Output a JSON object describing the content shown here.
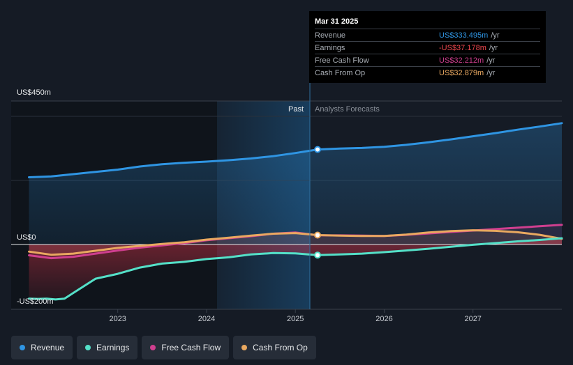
{
  "chart_data": {
    "type": "line",
    "y_axis": {
      "top_label": "US$450m",
      "zero_label": "US$0",
      "bottom_label": "-US$200m",
      "ylim": [
        -200,
        450
      ]
    },
    "x_axis": {
      "tick_labels": [
        "2023",
        "2024",
        "2025",
        "2026",
        "2027"
      ],
      "tick_values": [
        2023,
        2024,
        2025,
        2026,
        2027
      ],
      "xlim": [
        2021.8,
        2028.0
      ]
    },
    "divider_x": 2025.25,
    "period_labels": {
      "past": "Past",
      "forecast": "Analysts Forecasts"
    },
    "series": [
      {
        "name": "Revenue",
        "key": "revenue",
        "color": "#2f95e3",
        "x": [
          2022.0,
          2022.25,
          2022.5,
          2022.75,
          2023.0,
          2023.25,
          2023.5,
          2023.75,
          2024.0,
          2024.25,
          2024.5,
          2024.75,
          2025.0,
          2025.25,
          2025.5,
          2025.75,
          2026.0,
          2026.25,
          2026.5,
          2026.75,
          2027.0,
          2027.25,
          2027.5,
          2027.75,
          2028.0
        ],
        "y": [
          236,
          239,
          247,
          255,
          263,
          274,
          282,
          287,
          291,
          296,
          302,
          310,
          321,
          333.5,
          337,
          339,
          343,
          350,
          359,
          369,
          380,
          391,
          403,
          414,
          426
        ]
      },
      {
        "name": "Earnings",
        "key": "earnings",
        "color": "#54e0c8",
        "x": [
          2022.0,
          2022.1,
          2022.2,
          2022.3,
          2022.4,
          2022.5,
          2022.75,
          2023.0,
          2023.25,
          2023.5,
          2023.75,
          2024.0,
          2024.25,
          2024.5,
          2024.75,
          2025.0,
          2025.25,
          2025.5,
          2025.75,
          2026.0,
          2026.25,
          2026.5,
          2026.75,
          2027.0,
          2027.25,
          2027.5,
          2027.75,
          2028.0
        ],
        "y": [
          -190,
          -191,
          -190,
          -193,
          -190,
          -170,
          -120,
          -103,
          -81,
          -67,
          -61,
          -51,
          -45,
          -35,
          -30,
          -31,
          -37.2,
          -35,
          -32,
          -27,
          -21,
          -15,
          -8,
          -1,
          5,
          11,
          16,
          22
        ]
      },
      {
        "name": "Free Cash Flow",
        "key": "fcf",
        "color": "#cf3f8f",
        "x": [
          2022.0,
          2022.25,
          2022.5,
          2022.75,
          2023.0,
          2023.25,
          2023.5,
          2023.75,
          2024.0,
          2024.25,
          2024.5,
          2024.75,
          2025.0,
          2025.25,
          2025.5,
          2025.75,
          2026.0,
          2026.25,
          2026.5,
          2026.75,
          2027.0,
          2027.25,
          2027.5,
          2027.75,
          2028.0
        ],
        "y": [
          -38,
          -48,
          -43,
          -32,
          -21,
          -11,
          -3,
          5,
          15,
          22,
          29,
          38,
          42,
          32.2,
          32,
          31,
          30,
          34,
          39,
          44,
          49,
          54,
          59,
          64,
          69
        ]
      },
      {
        "name": "Cash From Op",
        "key": "cfo",
        "color": "#e9a860",
        "x": [
          2022.0,
          2022.25,
          2022.5,
          2022.75,
          2023.0,
          2023.25,
          2023.5,
          2023.75,
          2024.0,
          2024.25,
          2024.5,
          2024.75,
          2025.0,
          2025.25,
          2025.5,
          2025.75,
          2026.0,
          2026.25,
          2026.5,
          2026.75,
          2027.0,
          2027.25,
          2027.5,
          2027.75,
          2028.0
        ],
        "y": [
          -25,
          -36,
          -32,
          -22,
          -12,
          -5,
          2,
          8,
          17,
          24,
          31,
          38,
          40,
          32.9,
          31,
          30,
          30,
          35,
          42,
          47,
          50,
          48,
          43,
          34,
          20
        ]
      }
    ],
    "highlight": {
      "x": 2025.25,
      "series": [
        "revenue",
        "earnings",
        "cfo"
      ]
    }
  },
  "tooltip": {
    "date": "Mar 31 2025",
    "rows": [
      {
        "name": "Revenue",
        "value": "US$333.495m",
        "unit": "/yr",
        "color": "#2f95e3"
      },
      {
        "name": "Earnings",
        "value": "-US$37.178m",
        "unit": "/yr",
        "color": "#f0484e"
      },
      {
        "name": "Free Cash Flow",
        "value": "US$32.212m",
        "unit": "/yr",
        "color": "#cf3f8f"
      },
      {
        "name": "Cash From Op",
        "value": "US$32.879m",
        "unit": "/yr",
        "color": "#e9a860"
      }
    ]
  },
  "legend": [
    {
      "label": "Revenue",
      "color": "#2f95e3"
    },
    {
      "label": "Earnings",
      "color": "#54e0c8"
    },
    {
      "label": "Free Cash Flow",
      "color": "#cf3f8f"
    },
    {
      "label": "Cash From Op",
      "color": "#e9a860"
    }
  ]
}
